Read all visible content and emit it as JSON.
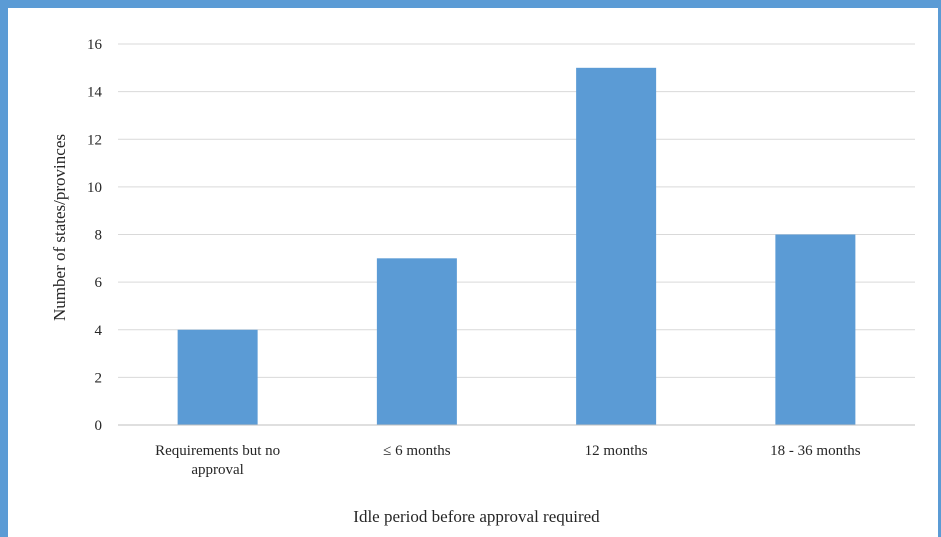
{
  "chart_data": {
    "type": "bar",
    "categories": [
      [
        "Requirements but no",
        "approval"
      ],
      [
        "≤ 6 months"
      ],
      [
        "12 months"
      ],
      [
        "18 - 36 months"
      ]
    ],
    "values": [
      4,
      7,
      15,
      8
    ],
    "xlabel": "Idle period before approval required",
    "ylabel": "Number of states/provinces",
    "ylim": [
      0,
      16
    ],
    "yticks": [
      "0",
      "2",
      "4",
      "6",
      "8",
      "10",
      "12",
      "14",
      "16"
    ],
    "grid": true,
    "legend": "none",
    "colors": {
      "bar": "#5b9bd5",
      "grid": "#d9d9d9",
      "axis": "#bfbfbf",
      "frame": "#5b9bd5"
    }
  }
}
